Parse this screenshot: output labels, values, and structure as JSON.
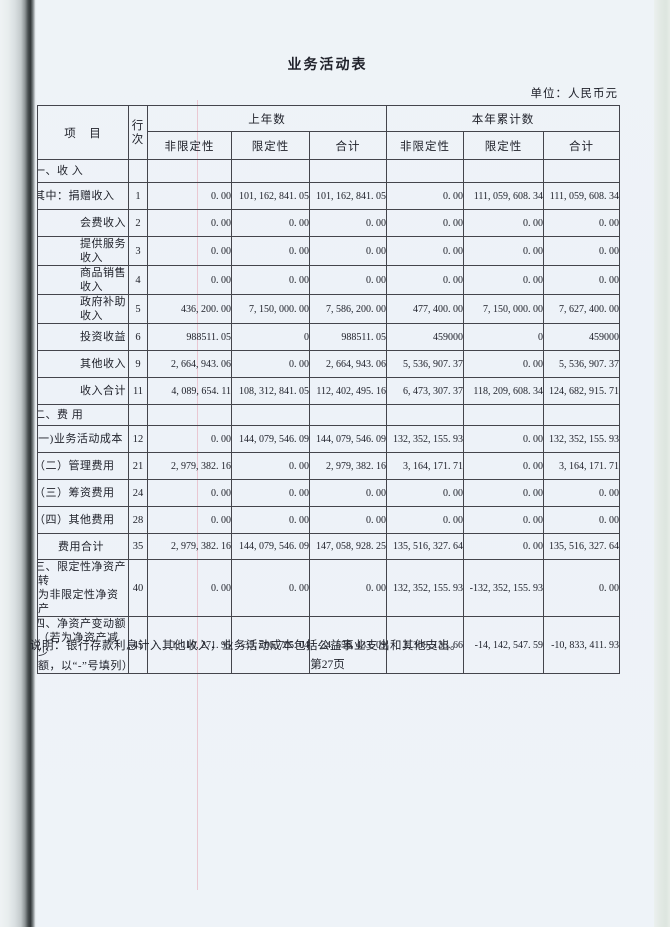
{
  "title": "业务活动表",
  "unit_label": "单位：人民币元",
  "table": {
    "header": {
      "item": "项　目",
      "line_no": "行\n次",
      "prev_year": "上年数",
      "cur_year": "本年累计数",
      "subs": [
        "非限定性",
        "限定性",
        "合计",
        "非限定性",
        "限定性",
        "合计"
      ]
    },
    "rows": [
      {
        "type": "section",
        "indent": 0,
        "label": "一、收 入",
        "line": "",
        "values": [
          "",
          "",
          "",
          "",
          "",
          ""
        ]
      },
      {
        "type": "data",
        "indent": 0,
        "label": "其中：捐赠收入",
        "line": "1",
        "values": [
          "0. 00",
          "101, 162, 841. 05",
          "101, 162, 841. 05",
          "0. 00",
          "111, 059, 608. 34",
          "111, 059, 608. 34"
        ]
      },
      {
        "type": "data",
        "indent": 1,
        "label": "会费收入",
        "line": "2",
        "values": [
          "0. 00",
          "0. 00",
          "0. 00",
          "0. 00",
          "0. 00",
          "0. 00"
        ]
      },
      {
        "type": "data",
        "indent": 1,
        "label": "提供服务收入",
        "line": "3",
        "values": [
          "0. 00",
          "0. 00",
          "0. 00",
          "0. 00",
          "0. 00",
          "0. 00"
        ]
      },
      {
        "type": "data",
        "indent": 1,
        "label": "商品销售收入",
        "line": "4",
        "values": [
          "0. 00",
          "0. 00",
          "0. 00",
          "0. 00",
          "0. 00",
          "0. 00"
        ]
      },
      {
        "type": "data",
        "indent": 1,
        "label": "政府补助收入",
        "line": "5",
        "values": [
          "436, 200. 00",
          "7, 150, 000. 00",
          "7, 586, 200. 00",
          "477, 400. 00",
          "7, 150, 000. 00",
          "7, 627, 400. 00"
        ]
      },
      {
        "type": "data",
        "indent": 1,
        "label": "投资收益",
        "line": "6",
        "values": [
          "988511. 05",
          "0",
          "988511. 05",
          "459000",
          "0",
          "459000"
        ]
      },
      {
        "type": "data",
        "indent": 1,
        "label": "其他收入",
        "line": "9",
        "values": [
          "2, 664, 943. 06",
          "0. 00",
          "2, 664, 943. 06",
          "5, 536, 907. 37",
          "0. 00",
          "5, 536, 907. 37"
        ]
      },
      {
        "type": "data",
        "indent": 1,
        "label": "收入合计",
        "line": "11",
        "values": [
          "4, 089, 654. 11",
          "108, 312, 841. 05",
          "112, 402, 495. 16",
          "6, 473, 307. 37",
          "118, 209, 608. 34",
          "124, 682, 915. 71"
        ]
      },
      {
        "type": "section2",
        "indent": 0,
        "label": "二、费 用",
        "line": "",
        "values": [
          "",
          "",
          "",
          "",
          "",
          ""
        ]
      },
      {
        "type": "data",
        "indent": 0,
        "label": "(一)业务活动成本",
        "line": "12",
        "values": [
          "0. 00",
          "144, 079, 546. 09",
          "144, 079, 546. 09",
          "132, 352, 155. 93",
          "0. 00",
          "132, 352, 155. 93"
        ]
      },
      {
        "type": "data",
        "indent": 0,
        "label": "（二）管理费用",
        "line": "21",
        "values": [
          "2, 979, 382. 16",
          "0. 00",
          "2, 979, 382. 16",
          "3, 164, 171. 71",
          "0. 00",
          "3, 164, 171. 71"
        ]
      },
      {
        "type": "data",
        "indent": 0,
        "label": "（三）筹资费用",
        "line": "24",
        "values": [
          "0. 00",
          "0. 00",
          "0. 00",
          "0. 00",
          "0. 00",
          "0. 00"
        ]
      },
      {
        "type": "data",
        "indent": 0,
        "label": "（四）其他费用",
        "line": "28",
        "values": [
          "0. 00",
          "0. 00",
          "0. 00",
          "0. 00",
          "0. 00",
          "0. 00"
        ]
      },
      {
        "type": "total",
        "indent": 2,
        "label": "费用合计",
        "line": "35",
        "values": [
          "2, 979, 382. 16",
          "144, 079, 546. 09",
          "147, 058, 928. 25",
          "135, 516, 327. 64",
          "0. 00",
          "135, 516, 327. 64"
        ]
      },
      {
        "type": "multi2",
        "indent": 0,
        "label": "三、限定性净资产转\n为非限定性净资产",
        "line": "40",
        "values": [
          "0. 00",
          "0. 00",
          "0. 00",
          "132, 352, 155. 93",
          "-132, 352, 155. 93",
          "0. 00"
        ]
      },
      {
        "type": "multi3",
        "indent": 0,
        "label": "四、净资产变动额\n（若为净资产减少\n额，以“-”号填列）",
        "line": "45",
        "values": [
          "1, 110, 271. 95",
          "-35, 766, 705. 04",
          "-34, 656, 433. 09",
          "3, 309, 135. 66",
          "-14, 142, 547. 59",
          "-10, 833, 411. 93"
        ]
      }
    ]
  },
  "note": "说明：银行存款利息计入其他收入，业务活动成本包括公益事业支出和其他支出。",
  "page_number": "第27页"
}
